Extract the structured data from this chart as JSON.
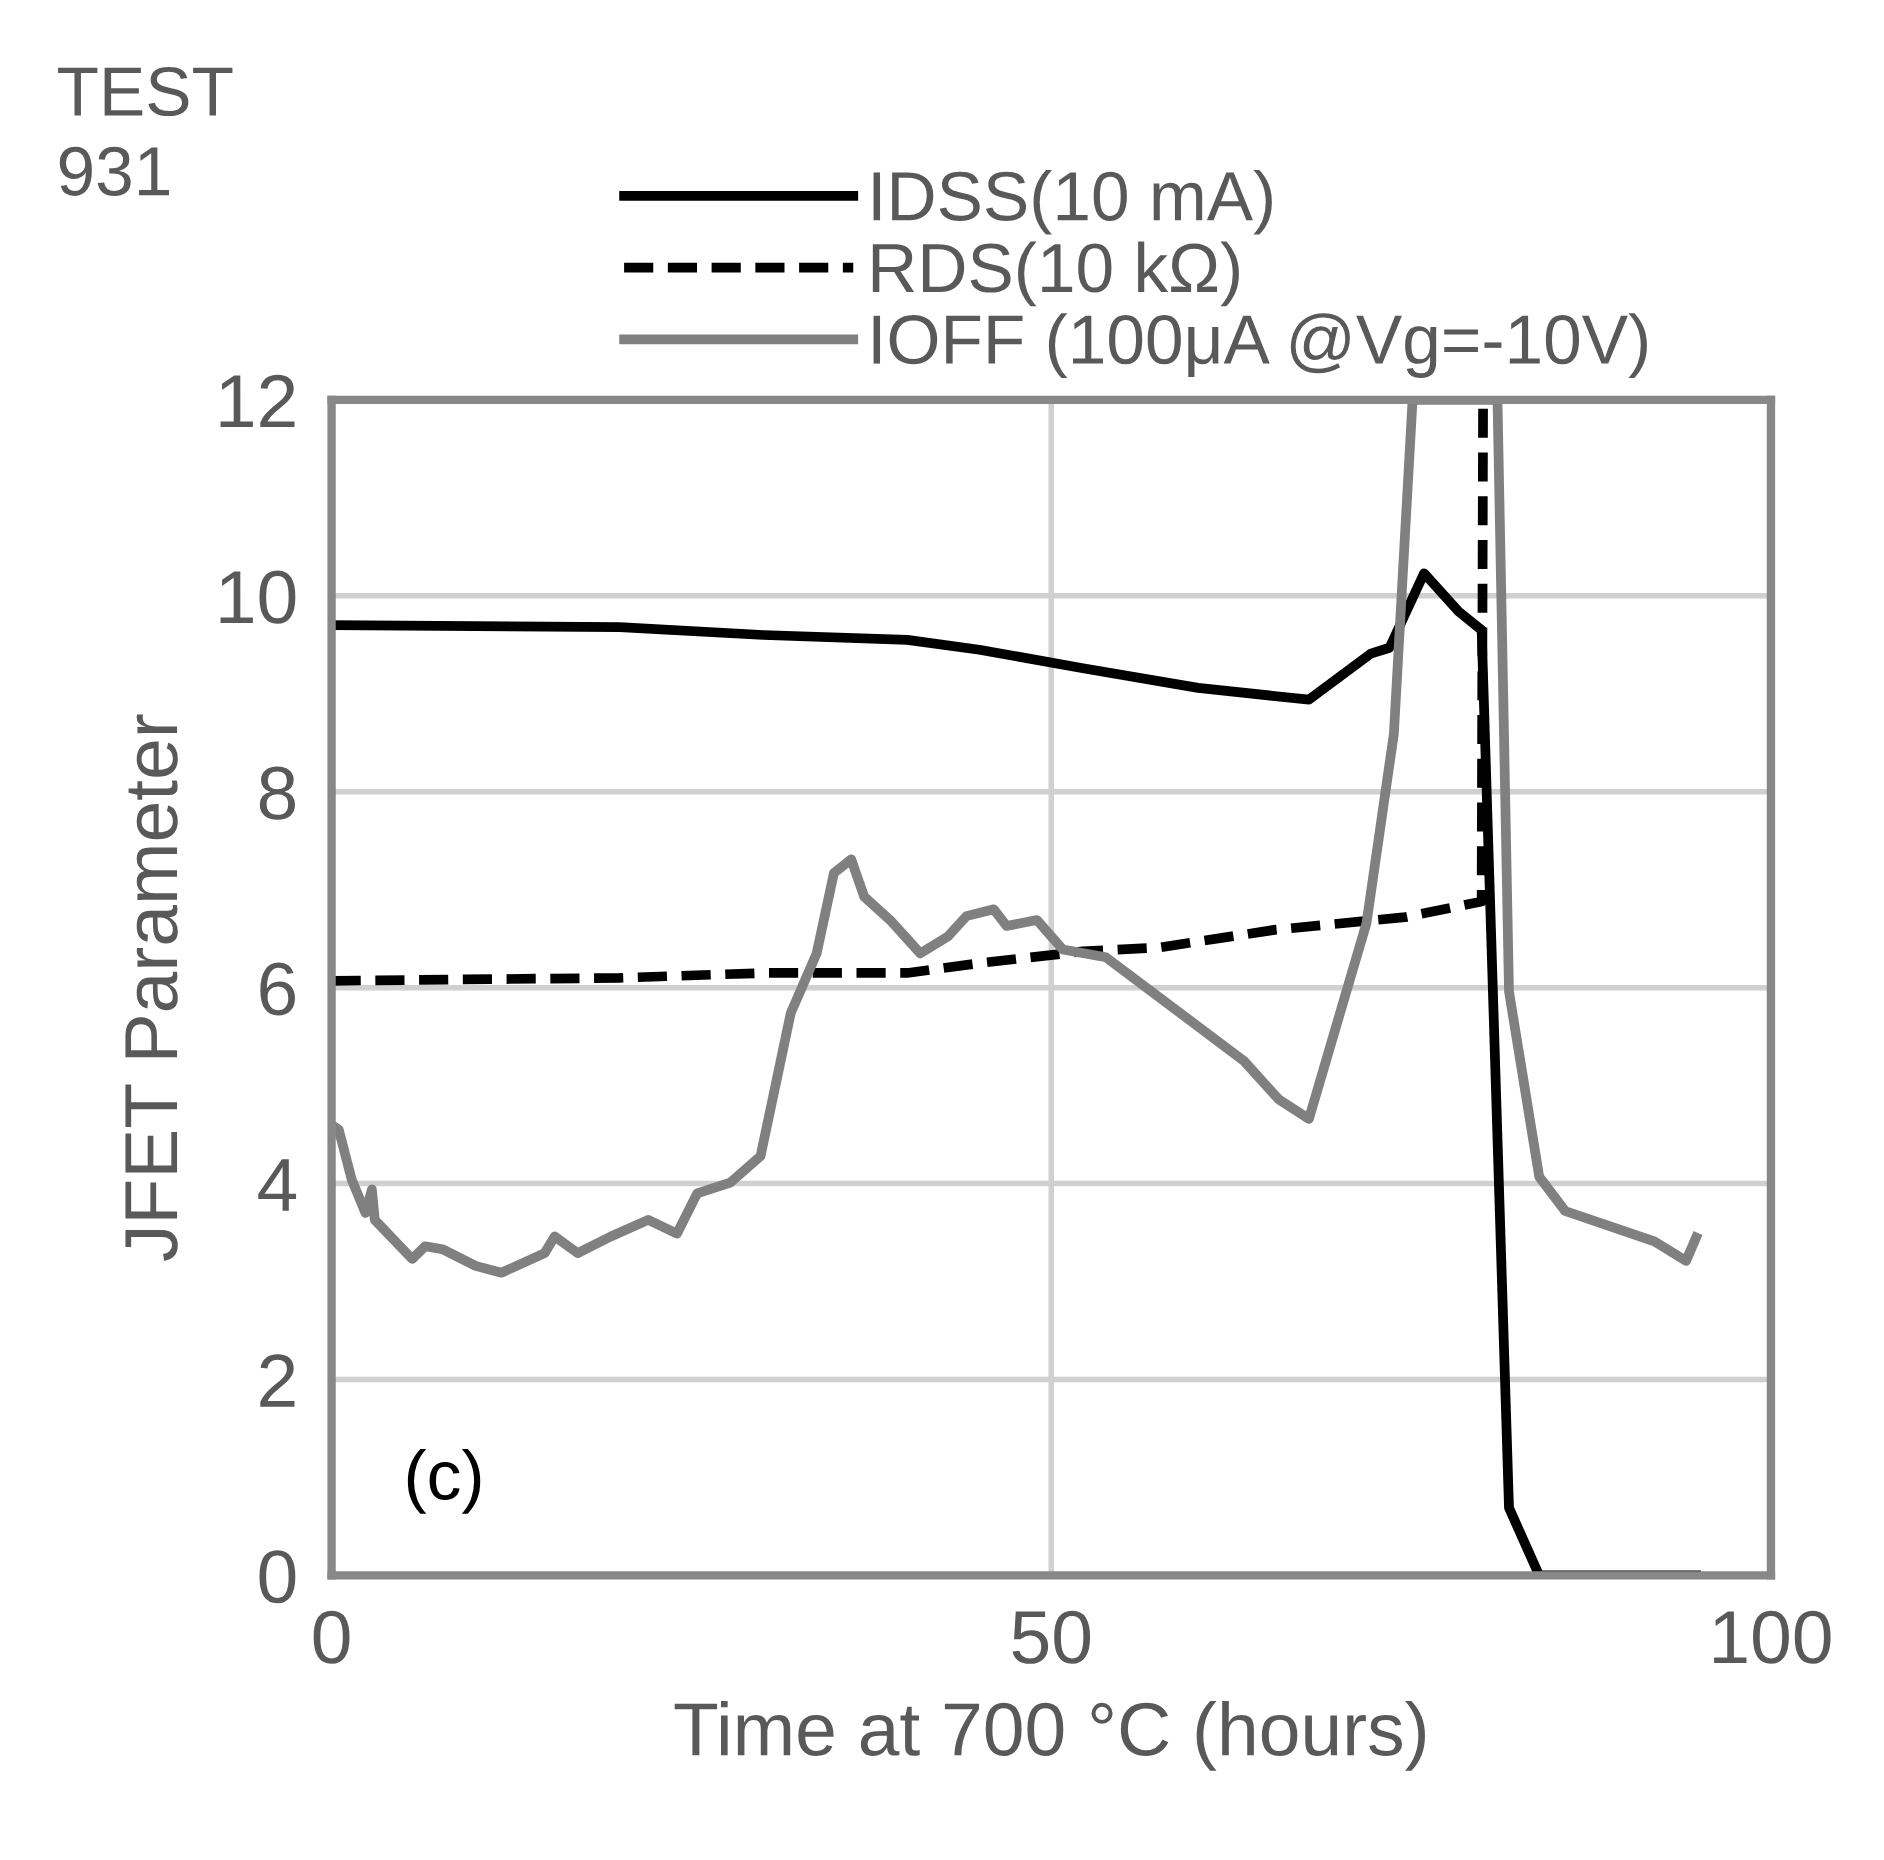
{
  "chart_data": {
    "type": "line",
    "xlabel": "Time at 700 °C (hours)",
    "ylabel": "JFET Parameter",
    "xlim": [
      0,
      100
    ],
    "xticks": [
      0,
      50,
      100
    ],
    "ylim": [
      0,
      12
    ],
    "yticks": [
      0,
      2,
      4,
      6,
      8,
      10,
      12
    ],
    "grid": true,
    "legend": "top",
    "marker": "none",
    "annotations": [
      "TEST\n931",
      "(c)"
    ],
    "series": [
      {
        "name": "IDSS(10 mA)",
        "color": "#000000",
        "line_style": "solid",
        "x": [
          0,
          20,
          30,
          40,
          45,
          52.2,
          60.2,
          67.9,
          72.2,
          73.5,
          75.9,
          78.3,
          79.9,
          81.8,
          83.9,
          94.8
        ],
        "values": [
          9.7,
          9.68,
          9.6,
          9.55,
          9.45,
          9.26,
          9.06,
          8.94,
          9.41,
          9.47,
          10.23,
          9.84,
          9.65,
          0.69,
          0,
          0
        ]
      },
      {
        "name": "RDS(10 kΩ)",
        "color": "#000000",
        "line_style": "dashed",
        "x": [
          0,
          20,
          30,
          40,
          45,
          52.2,
          57.5,
          65.5,
          74.6,
          79.9,
          80.0
        ],
        "values": [
          6.07,
          6.1,
          6.15,
          6.15,
          6.25,
          6.37,
          6.41,
          6.59,
          6.72,
          6.88,
          12
        ]
      },
      {
        "name": "IOFF (100μA @Vg=-10V)",
        "color": "#808080",
        "line_style": "solid",
        "x": [
          0,
          0.5,
          1.4,
          2.35,
          2.8,
          3.0,
          5.6,
          6.5,
          7.7,
          10,
          11.8,
          14.8,
          15.5,
          17.1,
          19.4,
          22,
          24,
          25.4,
          27.7,
          29.8,
          31.9,
          33.7,
          34.9,
          36.1,
          37,
          38.8,
          40.9,
          42.8,
          44.1,
          46,
          46.9,
          49,
          50.8,
          53.8,
          63.4,
          65.8,
          67.9,
          71.9,
          73.8,
          75.1,
          81,
          81.8,
          83.9,
          85.7,
          89.5,
          91.9,
          94.1,
          94.8
        ],
        "values": [
          4.6,
          4.55,
          4.04,
          3.7,
          3.94,
          3.63,
          3.23,
          3.36,
          3.33,
          3.16,
          3.09,
          3.29,
          3.46,
          3.29,
          3.46,
          3.63,
          3.49,
          3.9,
          4.01,
          4.28,
          5.74,
          6.35,
          7.17,
          7.31,
          6.93,
          6.69,
          6.35,
          6.52,
          6.73,
          6.8,
          6.63,
          6.69,
          6.39,
          6.31,
          5.25,
          4.86,
          4.66,
          6.66,
          8.59,
          12,
          12,
          5.96,
          4.07,
          3.72,
          3.53,
          3.41,
          3.21,
          3.45
        ]
      }
    ]
  }
}
